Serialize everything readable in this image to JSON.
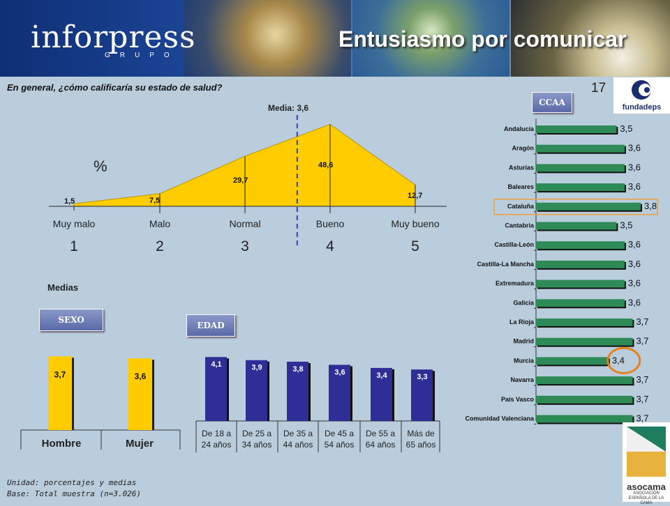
{
  "header": {
    "logo": "inforpress",
    "logo_sub": "GRUPO",
    "title": "Entusiasmo por comunicar"
  },
  "question": "En general, ¿cómo calificaría su estado de salud?",
  "page_number": "17",
  "fundadeps_logo": "fundadeps",
  "buttons": {
    "ccaa": "CCAA",
    "sexo": "SEXO",
    "edad": "EDAD"
  },
  "medias_label": "Medias",
  "footer": {
    "unit": "Unidad: porcentajes y medias",
    "base": "Base: Total muestra (n=3.026)"
  },
  "asocama_logo": {
    "name": "asocama",
    "sub": "ASOCIACIÓN ESPAÑOLA DE LA CAMA"
  },
  "colors": {
    "yellow": "#FFCC00",
    "navy": "#2E2E96",
    "green": "#2E8B57",
    "highlight_box": "#F0A040",
    "highlight_circle": "#E8801A",
    "mean_line": "#3344AA"
  },
  "chart_data": [
    {
      "type": "area",
      "categories": [
        "Muy malo",
        "Malo",
        "Normal",
        "Bueno",
        "Muy bueno"
      ],
      "scores": [
        "1",
        "2",
        "3",
        "4",
        "5"
      ],
      "values": [
        1.5,
        7.5,
        29.7,
        48.6,
        12.7
      ],
      "value_labels": [
        "1,5",
        "7,5",
        "29,7",
        "48,6",
        "12,7"
      ],
      "ylabel": "%",
      "mean_label": "Media: 3,6",
      "mean": 3.6,
      "ylim": [
        0,
        50
      ]
    },
    {
      "type": "bar",
      "title": "SEXO",
      "categories": [
        "Hombre",
        "Mujer"
      ],
      "values": [
        3.7,
        3.6
      ],
      "value_labels": [
        "3,7",
        "3,6"
      ],
      "ylim": [
        0,
        4.2
      ]
    },
    {
      "type": "bar",
      "title": "EDAD",
      "categories": [
        "De 18 a 24 años",
        "De 25 a 34 años",
        "De 35 a 44 años",
        "De 45 a 54 años",
        "De 55 a 64 años",
        "Más de 65 años"
      ],
      "category_lines": [
        [
          "De 18 a",
          "24 años"
        ],
        [
          "De 25 a",
          "34 años"
        ],
        [
          "De  35 a",
          "44 años"
        ],
        [
          "De 45 a",
          "54 años"
        ],
        [
          "De 55 a",
          "64 años"
        ],
        [
          "Más de",
          "65 años"
        ]
      ],
      "values": [
        4.1,
        3.9,
        3.8,
        3.6,
        3.4,
        3.3
      ],
      "value_labels": [
        "4,1",
        "3,9",
        "3,8",
        "3,6",
        "3,4",
        "3,3"
      ],
      "ylim": [
        0,
        4.2
      ]
    },
    {
      "type": "bar",
      "orientation": "horizontal",
      "title": "CCAA",
      "categories": [
        "Andalucía",
        "Aragón",
        "Asturias",
        "Baleares",
        "Cataluña",
        "Cantabria",
        "Castilla-León",
        "Castilla-La Mancha",
        "Extremadura",
        "Galicia",
        "La Rioja",
        "Madrid",
        "Murcia",
        "Navarra",
        "País Vasco",
        "Comunidad Valenciana"
      ],
      "values": [
        3.5,
        3.6,
        3.6,
        3.6,
        3.8,
        3.5,
        3.6,
        3.6,
        3.6,
        3.6,
        3.7,
        3.7,
        3.4,
        3.7,
        3.7,
        3.7
      ],
      "value_labels": [
        "3,5",
        "3,6",
        "3,6",
        "3,6",
        "3,8",
        "3,5",
        "3,6",
        "3,6",
        "3,6",
        "3,6",
        "3,7",
        "3,7",
        "3,4",
        "3,7",
        "3,7",
        "3,7"
      ],
      "highlight_box": "Cataluña",
      "highlight_circle": "Murcia"
    }
  ]
}
